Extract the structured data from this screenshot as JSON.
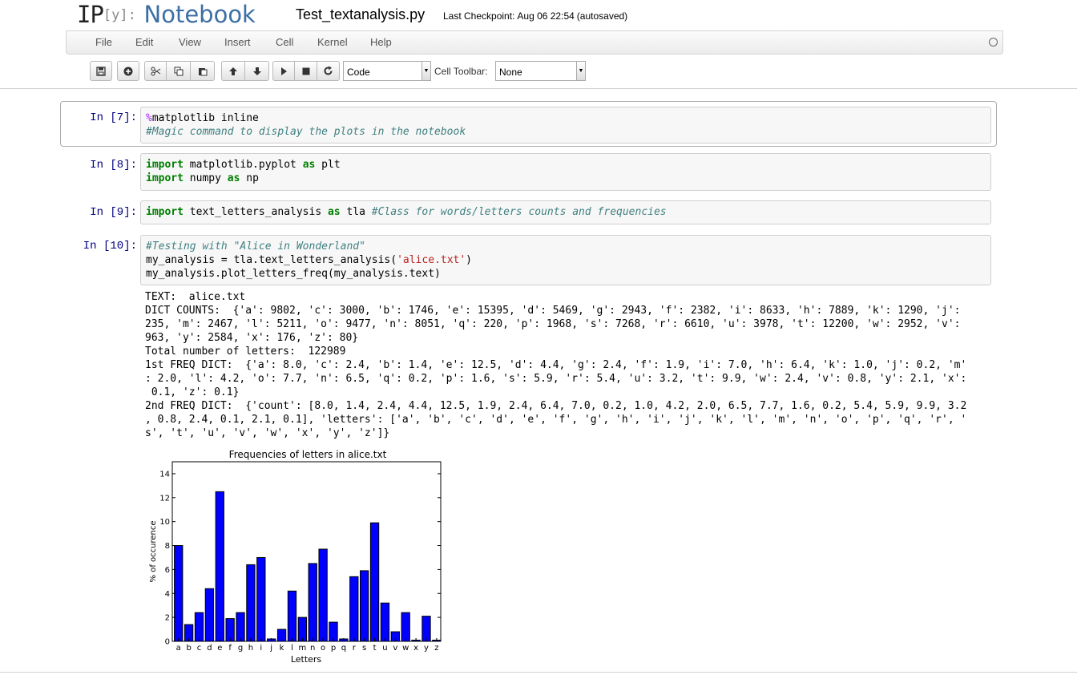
{
  "header": {
    "logo_ip": "IP",
    "logo_y": "[y]:",
    "logo_notebook": "Notebook",
    "notebook_title": "Test_textanalysis.py",
    "checkpoint_label": "Last Checkpoint:",
    "checkpoint_time": "Aug 06 22:54",
    "checkpoint_status": "(autosaved)"
  },
  "menu": [
    "File",
    "Edit",
    "View",
    "Insert",
    "Cell",
    "Kernel",
    "Help"
  ],
  "toolbar": {
    "icons": [
      "save-icon",
      "plus-icon",
      "cut-icon",
      "copy-icon",
      "paste-icon",
      "arrow-up-icon",
      "arrow-down-icon",
      "play-icon",
      "stop-icon",
      "restart-icon"
    ],
    "cell_type": "Code",
    "cell_toolbar_label": "Cell Toolbar:",
    "cell_toolbar_value": "None"
  },
  "cells": [
    {
      "prompt": "In [7]:",
      "lines": [
        [
          "%",
          "matplotlib inline"
        ],
        [
          "#Magic command to display the plots in the notebook"
        ]
      ]
    },
    {
      "prompt": "In [8]:",
      "lines": [
        [
          "import",
          " matplotlib.pyplot ",
          "as",
          " plt"
        ],
        [
          "import",
          " numpy ",
          "as",
          " np"
        ]
      ]
    },
    {
      "prompt": "In [9]:",
      "lines": [
        [
          "import",
          " text_letters_analysis ",
          "as",
          " tla ",
          "#Class for words/letters counts and frequencies"
        ]
      ]
    },
    {
      "prompt": "In [10]:",
      "lines": [
        [
          "#Testing with \"Alice in Wonderland\""
        ],
        [
          "my_analysis = tla.text_letters_analysis(",
          "'alice.txt'",
          ")"
        ],
        [
          "my_analysis.plot_letters_freq(my_analysis.text)"
        ]
      ]
    }
  ],
  "output_lines": [
    "TEXT:  alice.txt",
    "DICT COUNTS:  {'a': 9802, 'c': 3000, 'b': 1746, 'e': 15395, 'd': 5469, 'g': 2943, 'f': 2382, 'i': 8633, 'h': 7889, 'k': 1290, 'j':",
    "235, 'm': 2467, 'l': 5211, 'o': 9477, 'n': 8051, 'q': 220, 'p': 1968, 's': 7268, 'r': 6610, 'u': 3978, 't': 12200, 'w': 2952, 'v':",
    "963, 'y': 2584, 'x': 176, 'z': 80}",
    "Total number of letters:  122989",
    "1st FREQ DICT:  {'a': 8.0, 'c': 2.4, 'b': 1.4, 'e': 12.5, 'd': 4.4, 'g': 2.4, 'f': 1.9, 'i': 7.0, 'h': 6.4, 'k': 1.0, 'j': 0.2, 'm'",
    ": 2.0, 'l': 4.2, 'o': 7.7, 'n': 6.5, 'q': 0.2, 'p': 1.6, 's': 5.9, 'r': 5.4, 'u': 3.2, 't': 9.9, 'w': 2.4, 'v': 0.8, 'y': 2.1, 'x':",
    " 0.1, 'z': 0.1}",
    "2nd FREQ DICT:  {'count': [8.0, 1.4, 2.4, 4.4, 12.5, 1.9, 2.4, 6.4, 7.0, 0.2, 1.0, 4.2, 2.0, 6.5, 7.7, 1.6, 0.2, 5.4, 5.9, 9.9, 3.2",
    ", 0.8, 2.4, 0.1, 2.1, 0.1], 'letters': ['a', 'b', 'c', 'd', 'e', 'f', 'g', 'h', 'i', 'j', 'k', 'l', 'm', 'n', 'o', 'p', 'q', 'r', '",
    "s', 't', 'u', 'v', 'w', 'x', 'y', 'z']}"
  ],
  "chart_data": {
    "type": "bar",
    "title": "Frequencies of letters in alice.txt",
    "xlabel": "Letters",
    "ylabel": "% of occurence",
    "ylim": [
      0,
      15
    ],
    "yticks": [
      0,
      2,
      4,
      6,
      8,
      10,
      12,
      14
    ],
    "categories": [
      "a",
      "b",
      "c",
      "d",
      "e",
      "f",
      "g",
      "h",
      "i",
      "j",
      "k",
      "l",
      "m",
      "n",
      "o",
      "p",
      "q",
      "r",
      "s",
      "t",
      "u",
      "v",
      "w",
      "x",
      "y",
      "z"
    ],
    "values": [
      8.0,
      1.4,
      2.4,
      4.4,
      12.5,
      1.9,
      2.4,
      6.4,
      7.0,
      0.2,
      1.0,
      4.2,
      2.0,
      6.5,
      7.7,
      1.6,
      0.2,
      5.4,
      5.9,
      9.9,
      3.2,
      0.8,
      2.4,
      0.1,
      2.1,
      0.1
    ],
    "bar_color": "#0000ff",
    "grid": false
  }
}
